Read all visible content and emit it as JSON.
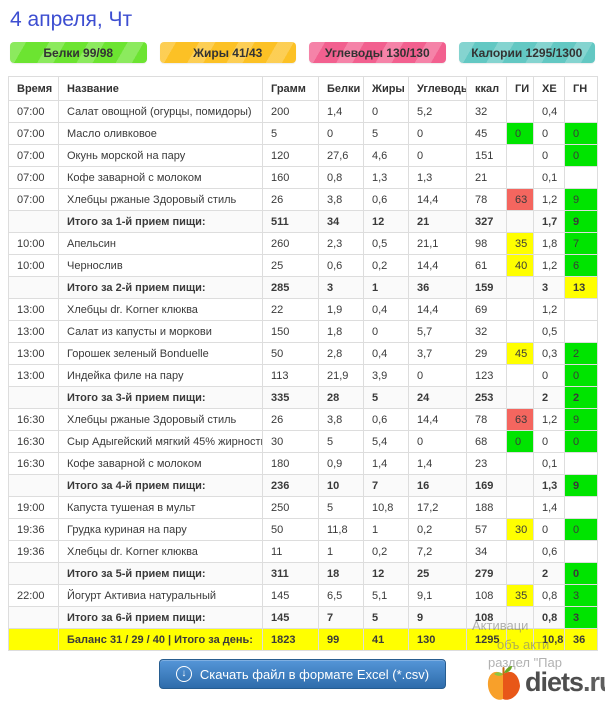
{
  "page": {
    "date_title": "4 апреля, Чт"
  },
  "badges": [
    {
      "id": "protein",
      "label": "Белки 99/98",
      "color": "#6ce431"
    },
    {
      "id": "fat",
      "label": "Жиры 41/43",
      "color": "#fcc125"
    },
    {
      "id": "carbs",
      "label": "Углеводы 130/130",
      "color": "#f2608f"
    },
    {
      "id": "calories",
      "label": "Калории 1295/1300",
      "color": "#63c8c3"
    }
  ],
  "colors": {
    "green": "#00e400",
    "yellow": "#ffff00",
    "red": "#f4665f"
  },
  "table": {
    "columns": [
      "Время",
      "Название",
      "Грамм",
      "Белки",
      "Жиры",
      "Углеводы",
      "ккал",
      "ГИ",
      "ХЕ",
      "ГН"
    ],
    "rows": [
      {
        "kind": "item",
        "time": "07:00",
        "name": "Салат овощной (огурцы, помидоры)",
        "grams": "200",
        "protein": "1,4",
        "fat": "0",
        "carbs": "5,2",
        "kcal": "32",
        "gi": "",
        "xe": "0,4",
        "gn": ""
      },
      {
        "kind": "item",
        "time": "07:00",
        "name": "Масло оливковое",
        "grams": "5",
        "protein": "0",
        "fat": "5",
        "carbs": "0",
        "kcal": "45",
        "gi": "0",
        "gi_bg": "green",
        "xe": "0",
        "gn": "0",
        "gn_bg": "green"
      },
      {
        "kind": "item",
        "time": "07:00",
        "name": "Окунь морской на пару",
        "grams": "120",
        "protein": "27,6",
        "fat": "4,6",
        "carbs": "0",
        "kcal": "151",
        "gi": "",
        "xe": "0",
        "gn": "0",
        "gn_bg": "green"
      },
      {
        "kind": "item",
        "time": "07:00",
        "name": "Кофе заварной с молоком",
        "grams": "160",
        "protein": "0,8",
        "fat": "1,3",
        "carbs": "1,3",
        "kcal": "21",
        "gi": "",
        "xe": "0,1",
        "gn": ""
      },
      {
        "kind": "item",
        "time": "07:00",
        "name": "Хлебцы ржаные Здоровый стиль",
        "grams": "26",
        "protein": "3,8",
        "fat": "0,6",
        "carbs": "14,4",
        "kcal": "78",
        "gi": "63",
        "gi_bg": "red",
        "xe": "1,2",
        "gn": "9",
        "gn_bg": "green"
      },
      {
        "kind": "summary",
        "time": "",
        "name": "Итого за 1-й прием пищи:",
        "grams": "511",
        "protein": "34",
        "fat": "12",
        "carbs": "21",
        "kcal": "327",
        "gi": "",
        "xe": "1,7",
        "gn": "9",
        "gn_bg": "green"
      },
      {
        "kind": "item",
        "time": "10:00",
        "name": "Апельсин",
        "grams": "260",
        "protein": "2,3",
        "fat": "0,5",
        "carbs": "21,1",
        "kcal": "98",
        "gi": "35",
        "gi_bg": "yellow",
        "xe": "1,8",
        "gn": "7",
        "gn_bg": "green"
      },
      {
        "kind": "item",
        "time": "10:00",
        "name": "Чернослив",
        "grams": "25",
        "protein": "0,6",
        "fat": "0,2",
        "carbs": "14,4",
        "kcal": "61",
        "gi": "40",
        "gi_bg": "yellow",
        "xe": "1,2",
        "gn": "6",
        "gn_bg": "green"
      },
      {
        "kind": "summary",
        "time": "",
        "name": "Итого за 2-й прием пищи:",
        "grams": "285",
        "protein": "3",
        "fat": "1",
        "carbs": "36",
        "kcal": "159",
        "gi": "",
        "xe": "3",
        "gn": "13",
        "gn_bg": "yellow"
      },
      {
        "kind": "item",
        "time": "13:00",
        "name": "Хлебцы dr. Korner клюква",
        "grams": "22",
        "protein": "1,9",
        "fat": "0,4",
        "carbs": "14,4",
        "kcal": "69",
        "gi": "",
        "xe": "1,2",
        "gn": ""
      },
      {
        "kind": "item",
        "time": "13:00",
        "name": "Салат из капусты и моркови",
        "grams": "150",
        "protein": "1,8",
        "fat": "0",
        "carbs": "5,7",
        "kcal": "32",
        "gi": "",
        "xe": "0,5",
        "gn": ""
      },
      {
        "kind": "item",
        "time": "13:00",
        "name": "Горошек зеленый Bonduelle",
        "grams": "50",
        "protein": "2,8",
        "fat": "0,4",
        "carbs": "3,7",
        "kcal": "29",
        "gi": "45",
        "gi_bg": "yellow",
        "xe": "0,3",
        "gn": "2",
        "gn_bg": "green"
      },
      {
        "kind": "item",
        "time": "13:00",
        "name": "Индейка филе на пару",
        "grams": "113",
        "protein": "21,9",
        "fat": "3,9",
        "carbs": "0",
        "kcal": "123",
        "gi": "",
        "xe": "0",
        "gn": "0",
        "gn_bg": "green"
      },
      {
        "kind": "summary",
        "time": "",
        "name": "Итого за 3-й прием пищи:",
        "grams": "335",
        "protein": "28",
        "fat": "5",
        "carbs": "24",
        "kcal": "253",
        "gi": "",
        "xe": "2",
        "gn": "2",
        "gn_bg": "green"
      },
      {
        "kind": "item",
        "time": "16:30",
        "name": "Хлебцы ржаные Здоровый стиль",
        "grams": "26",
        "protein": "3,8",
        "fat": "0,6",
        "carbs": "14,4",
        "kcal": "78",
        "gi": "63",
        "gi_bg": "red",
        "xe": "1,2",
        "gn": "9",
        "gn_bg": "green"
      },
      {
        "kind": "item",
        "time": "16:30",
        "name": "Сыр Адыгейский мягкий 45% жирности",
        "grams": "30",
        "protein": "5",
        "fat": "5,4",
        "carbs": "0",
        "kcal": "68",
        "gi": "0",
        "gi_bg": "green",
        "xe": "0",
        "gn": "0",
        "gn_bg": "green"
      },
      {
        "kind": "item",
        "time": "16:30",
        "name": "Кофе заварной с молоком",
        "grams": "180",
        "protein": "0,9",
        "fat": "1,4",
        "carbs": "1,4",
        "kcal": "23",
        "gi": "",
        "xe": "0,1",
        "gn": ""
      },
      {
        "kind": "summary",
        "time": "",
        "name": "Итого за 4-й прием пищи:",
        "grams": "236",
        "protein": "10",
        "fat": "7",
        "carbs": "16",
        "kcal": "169",
        "gi": "",
        "xe": "1,3",
        "gn": "9",
        "gn_bg": "green"
      },
      {
        "kind": "item",
        "time": "19:00",
        "name": "Капуста тушеная в мульт",
        "grams": "250",
        "protein": "5",
        "fat": "10,8",
        "carbs": "17,2",
        "kcal": "188",
        "gi": "",
        "xe": "1,4",
        "gn": ""
      },
      {
        "kind": "item",
        "time": "19:36",
        "name": "Грудка куриная на пару",
        "grams": "50",
        "protein": "11,8",
        "fat": "1",
        "carbs": "0,2",
        "kcal": "57",
        "gi": "30",
        "gi_bg": "yellow",
        "xe": "0",
        "gn": "0",
        "gn_bg": "green"
      },
      {
        "kind": "item",
        "time": "19:36",
        "name": "Хлебцы dr. Korner клюква",
        "grams": "11",
        "protein": "1",
        "fat": "0,2",
        "carbs": "7,2",
        "kcal": "34",
        "gi": "",
        "xe": "0,6",
        "gn": ""
      },
      {
        "kind": "summary",
        "time": "",
        "name": "Итого за 5-й прием пищи:",
        "grams": "311",
        "protein": "18",
        "fat": "12",
        "carbs": "25",
        "kcal": "279",
        "gi": "",
        "xe": "2",
        "gn": "0",
        "gn_bg": "green"
      },
      {
        "kind": "item",
        "time": "22:00",
        "name": "Йогурт Активиа натуральный",
        "grams": "145",
        "protein": "6,5",
        "fat": "5,1",
        "carbs": "9,1",
        "kcal": "108",
        "gi": "35",
        "gi_bg": "yellow",
        "xe": "0,8",
        "gn": "3",
        "gn_bg": "green"
      },
      {
        "kind": "summary",
        "time": "",
        "name": "Итого за 6-й прием пищи:",
        "grams": "145",
        "protein": "7",
        "fat": "5",
        "carbs": "9",
        "kcal": "108",
        "gi": "",
        "xe": "0,8",
        "gn": "3",
        "gn_bg": "green"
      },
      {
        "kind": "total",
        "time": "",
        "name": "Баланс 31 / 29 / 40 | Итого за день:",
        "grams": "1823",
        "protein": "99",
        "fat": "41",
        "carbs": "130",
        "kcal": "1295",
        "gi": "",
        "xe": "10,8",
        "gn": "36"
      }
    ]
  },
  "footer": {
    "download_button_label": "Скачать файл в формате Excel (*.csv)",
    "download_icon": "↓",
    "watermark_lines": [
      "Активаци",
      "объ акти",
      "раздел \"Пар"
    ],
    "logo_text": "diets",
    "logo_tld": ".ru"
  }
}
